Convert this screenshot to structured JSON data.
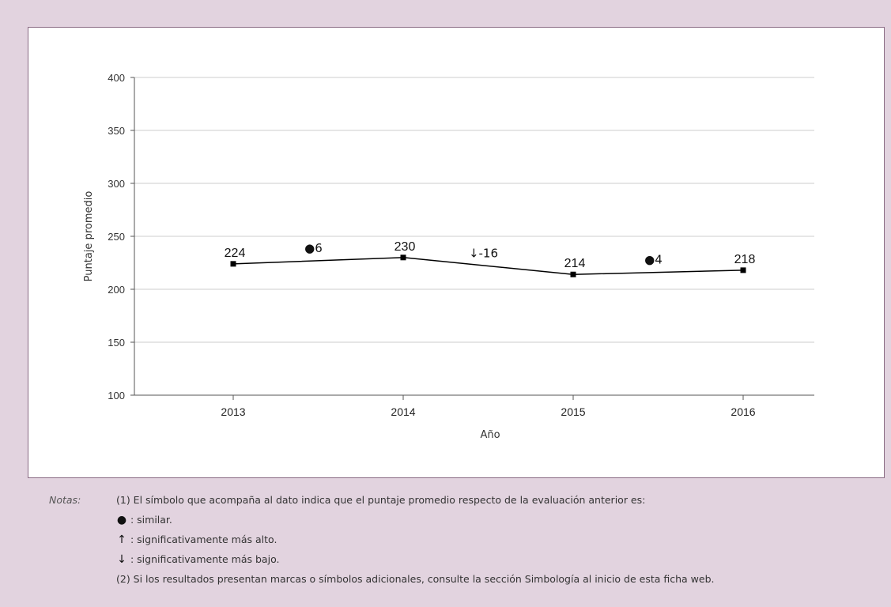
{
  "chart_data": {
    "type": "line",
    "x": [
      "2013",
      "2014",
      "2015",
      "2016"
    ],
    "series": [
      {
        "values": [
          224,
          230,
          214,
          218
        ]
      }
    ],
    "data_labels": [
      "224",
      "230",
      "214",
      "218"
    ],
    "change_labels": [
      {
        "between": [
          "2013",
          "2014"
        ],
        "symbol": "●",
        "text": "6"
      },
      {
        "between": [
          "2014",
          "2015"
        ],
        "symbol": "↓",
        "text": "-16"
      },
      {
        "between": [
          "2015",
          "2016"
        ],
        "symbol": "●",
        "text": "4"
      }
    ],
    "xlabel": "Año",
    "ylabel": "Puntaje promedio",
    "ylim": [
      100,
      400
    ],
    "yticks": [
      "100",
      "150",
      "200",
      "250",
      "300",
      "350",
      "400"
    ],
    "grid": true,
    "colors": {
      "line": "#000000",
      "grid": "#cccccc",
      "frame": "#8a6b84",
      "background": "#e2d3df"
    }
  },
  "notes": {
    "label": "Notas:",
    "line1": "(1) El símbolo que acompaña al dato indica que el puntaje promedio respecto de la evaluación anterior es:",
    "similar_symbol": "●",
    "similar_text": ": similar.",
    "up_symbol": "↑",
    "up_text": ": significativamente más alto.",
    "down_symbol": "↓",
    "down_text": ": significativamente más bajo.",
    "line2": "(2) Si los resultados presentan marcas o símbolos adicionales, consulte la sección Simbología al inicio de esta ficha web."
  }
}
